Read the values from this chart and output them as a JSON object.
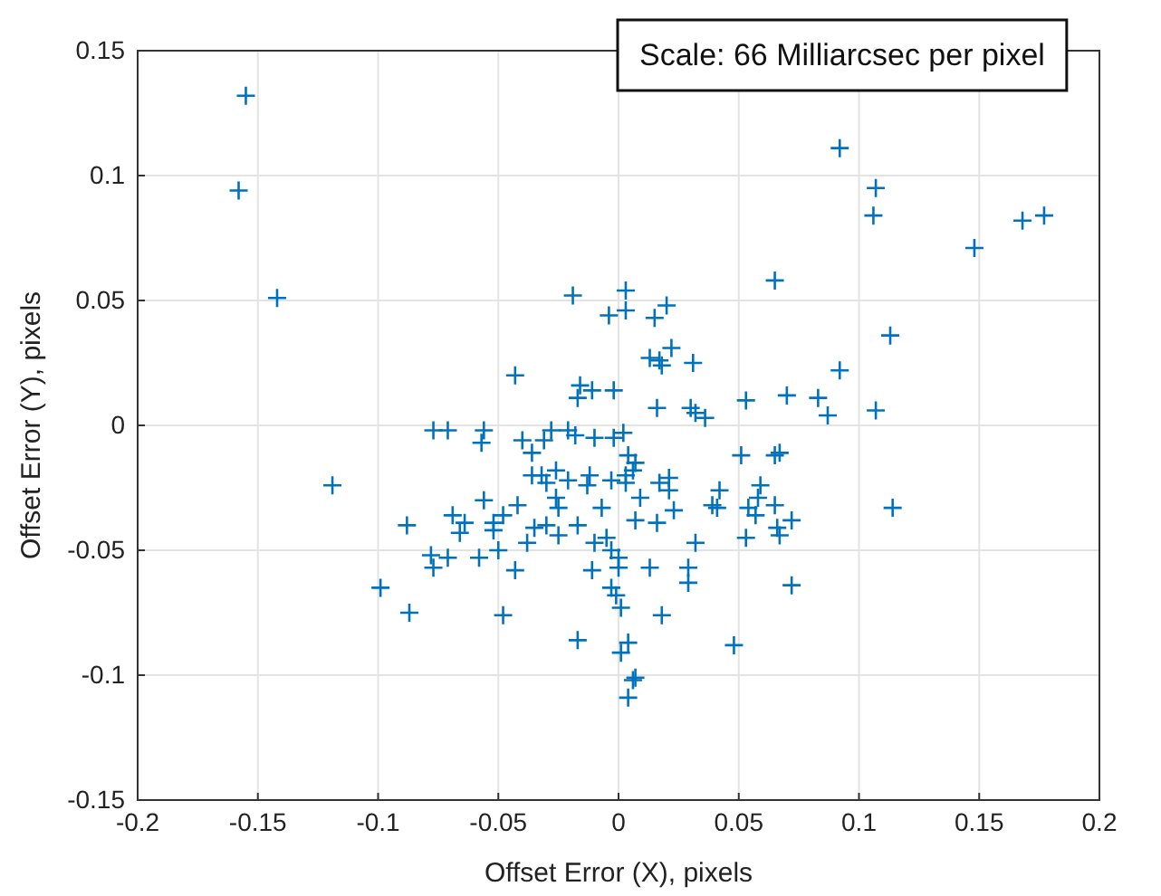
{
  "chart_data": {
    "type": "scatter",
    "xlabel": "Offset Error (X), pixels",
    "ylabel": "Offset Error (Y), pixels",
    "annotations": [
      "Scale: 66 Milliarcsec per pixel"
    ],
    "xlim": [
      -0.2,
      0.2
    ],
    "xticks": [
      -0.2,
      -0.15,
      -0.1,
      -0.05,
      {
        "value": 0,
        "label": "0"
      },
      0.05,
      0.1,
      0.15,
      0.2
    ],
    "ylim": [
      -0.15,
      0.15
    ],
    "yticks": [
      -0.15,
      -0.1,
      -0.05,
      {
        "value": 0,
        "label": "0"
      },
      0.05,
      0.1,
      0.15
    ],
    "grid": true,
    "marker": "cross",
    "series": [
      {
        "color": "#0072bd",
        "x": [
          -0.155,
          -0.158,
          -0.142,
          -0.019,
          0.003,
          -0.004,
          0.003,
          -0.043,
          -0.016,
          -0.011,
          -0.017,
          -0.002,
          -0.077,
          -0.071,
          -0.056,
          -0.028,
          -0.021,
          0.092,
          0.107,
          0.106,
          0.168,
          0.177,
          0.148,
          0.065,
          0.015,
          0.02,
          0.113,
          0.022,
          0.013,
          0.017,
          0.018,
          0.031,
          0.092,
          0.016,
          0.03,
          0.032,
          0.036,
          0.053,
          0.07,
          0.083,
          0.087,
          0.107,
          -0.018,
          -0.01,
          -0.002,
          0.002,
          -0.057,
          -0.04,
          -0.031,
          -0.036,
          0.004,
          -0.119,
          -0.036,
          -0.032,
          -0.026,
          -0.021,
          -0.012,
          -0.003,
          0.003,
          0.003,
          -0.03,
          -0.013,
          -0.026,
          -0.025,
          -0.056,
          -0.042,
          -0.007,
          -0.088,
          -0.069,
          -0.064,
          -0.066,
          -0.052,
          -0.048,
          -0.052,
          -0.035,
          -0.03,
          -0.025,
          -0.017,
          -0.038,
          -0.01,
          -0.005,
          -0.05,
          -0.078,
          -0.077,
          -0.071,
          -0.058,
          -0.003,
          0.0,
          0.0,
          -0.043,
          -0.011,
          -0.099,
          -0.003,
          -0.001,
          0.001,
          -0.087,
          -0.048,
          -0.017,
          0.004,
          0.001,
          0.004,
          0.006,
          0.051,
          0.065,
          0.067,
          0.007,
          0.006,
          0.017,
          0.021,
          0.021,
          0.009,
          0.042,
          0.039,
          0.041,
          0.059,
          0.054,
          0.057,
          0.065,
          0.072,
          0.058,
          0.066,
          0.067,
          0.053,
          0.114,
          0.007,
          0.016,
          0.023,
          0.032,
          0.013,
          0.029,
          0.029,
          0.072,
          0.018,
          0.048,
          0.007
        ],
        "values": [
          0.132,
          0.094,
          0.051,
          0.052,
          0.054,
          0.044,
          0.046,
          0.02,
          0.016,
          0.014,
          0.011,
          0.014,
          -0.002,
          -0.002,
          -0.002,
          -0.002,
          -0.002,
          0.111,
          0.095,
          0.084,
          0.082,
          0.084,
          0.071,
          0.058,
          0.043,
          0.048,
          0.036,
          0.031,
          0.027,
          0.026,
          0.024,
          0.025,
          0.022,
          0.007,
          0.007,
          0.005,
          0.003,
          0.01,
          0.012,
          0.011,
          0.004,
          0.006,
          -0.004,
          -0.005,
          -0.005,
          -0.003,
          -0.007,
          -0.006,
          -0.006,
          -0.011,
          -0.012,
          -0.024,
          -0.02,
          -0.02,
          -0.018,
          -0.022,
          -0.02,
          -0.022,
          -0.02,
          -0.023,
          -0.023,
          -0.024,
          -0.029,
          -0.033,
          -0.03,
          -0.032,
          -0.033,
          -0.04,
          -0.036,
          -0.039,
          -0.043,
          -0.039,
          -0.036,
          -0.042,
          -0.041,
          -0.04,
          -0.044,
          -0.04,
          -0.047,
          -0.047,
          -0.045,
          -0.05,
          -0.052,
          -0.057,
          -0.053,
          -0.053,
          -0.05,
          -0.053,
          -0.057,
          -0.058,
          -0.058,
          -0.065,
          -0.065,
          -0.068,
          -0.073,
          -0.075,
          -0.076,
          -0.086,
          -0.087,
          -0.091,
          -0.109,
          -0.102,
          -0.012,
          -0.012,
          -0.011,
          -0.015,
          -0.018,
          -0.023,
          -0.021,
          -0.026,
          -0.029,
          -0.026,
          -0.032,
          -0.033,
          -0.024,
          -0.033,
          -0.036,
          -0.032,
          -0.038,
          -0.029,
          -0.041,
          -0.044,
          -0.045,
          -0.033,
          -0.038,
          -0.039,
          -0.034,
          -0.047,
          -0.057,
          -0.057,
          -0.063,
          -0.064,
          -0.076,
          -0.088,
          -0.101
        ]
      }
    ]
  }
}
